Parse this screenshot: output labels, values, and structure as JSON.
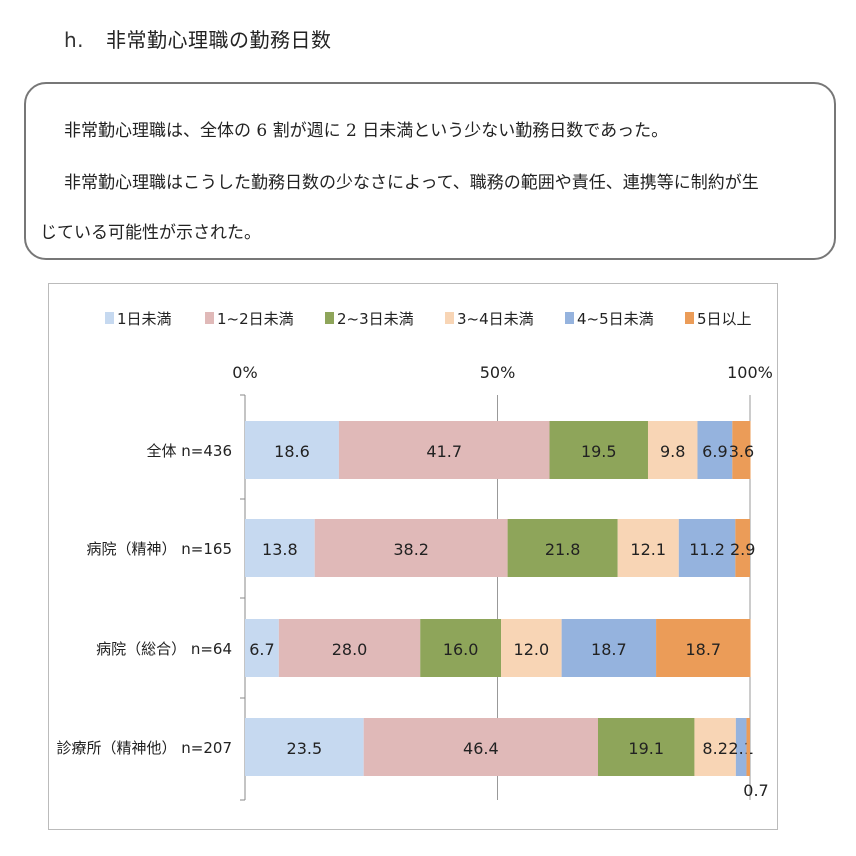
{
  "heading": {
    "number": "h.",
    "title": "非常勤心理職の勤務日数"
  },
  "summary": {
    "line1": "非常勤心理職は、全体の 6 割が週に 2 日未満という少ない勤務日数であった。",
    "line2": "非常勤心理職はこうした勤務日数の少なさによって、職務の範囲や責任、連携等に制約が生",
    "line3": "じている可能性が示された。"
  },
  "chart_data": {
    "type": "bar",
    "orientation": "horizontal",
    "stacked": true,
    "legend_position": "top",
    "xlim": [
      0,
      100
    ],
    "x_ticks": [
      "0%",
      "50%",
      "100%"
    ],
    "categories": [
      "全体 n=436",
      "病院（精神） n=165",
      "病院（総合） n=64",
      "診療所（精神他） n=207"
    ],
    "series": [
      {
        "name": "1日未満",
        "color": "#c6d9f0",
        "values": [
          18.6,
          13.8,
          6.7,
          23.5
        ]
      },
      {
        "name": "1~2日未満",
        "color": "#e0b9b8",
        "values": [
          41.7,
          38.2,
          28.0,
          46.4
        ]
      },
      {
        "name": "2~3日未満",
        "color": "#8ea55a",
        "values": [
          19.5,
          21.8,
          16.0,
          19.1
        ]
      },
      {
        "name": "3~4日未満",
        "color": "#f8d5b5",
        "values": [
          9.8,
          12.1,
          12.0,
          8.2
        ]
      },
      {
        "name": "4~5日未満",
        "color": "#95b3de",
        "values": [
          6.9,
          11.2,
          18.7,
          2.1
        ]
      },
      {
        "name": "5日以上",
        "color": "#eb9c58",
        "values": [
          3.6,
          2.9,
          18.7,
          0.7
        ]
      }
    ]
  }
}
